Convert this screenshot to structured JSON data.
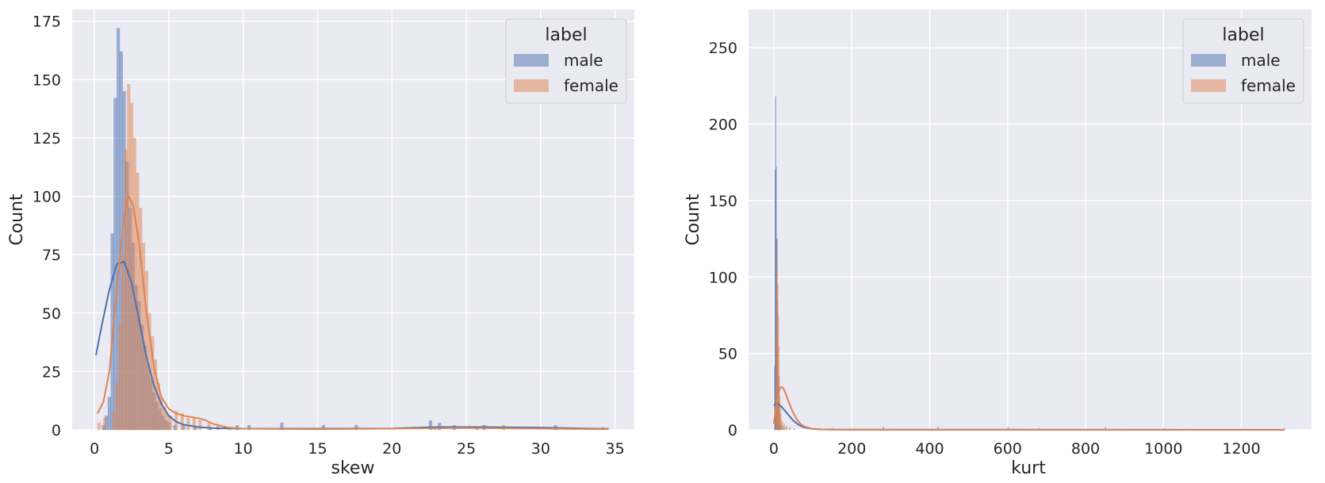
{
  "chart_data": [
    {
      "type": "histogram",
      "xlabel": "skew",
      "ylabel": "Count",
      "xlim": [
        -1.5,
        36.3
      ],
      "ylim": [
        0,
        180
      ],
      "xticks": [
        0,
        5,
        10,
        15,
        20,
        25,
        30,
        35
      ],
      "yticks": [
        0,
        25,
        50,
        75,
        100,
        125,
        150,
        175
      ],
      "grid": true,
      "legend": {
        "title": "label",
        "placement": "top-right",
        "entries": [
          "male",
          "female"
        ]
      },
      "series": [
        {
          "name": "male",
          "color": "#4C72B0",
          "bins": [
            {
              "x": 0.5,
              "w": 0.2,
              "y": 2
            },
            {
              "x": 0.7,
              "w": 0.2,
              "y": 6
            },
            {
              "x": 0.9,
              "w": 0.2,
              "y": 14
            },
            {
              "x": 1.1,
              "w": 0.2,
              "y": 84
            },
            {
              "x": 1.3,
              "w": 0.2,
              "y": 142
            },
            {
              "x": 1.5,
              "w": 0.2,
              "y": 172
            },
            {
              "x": 1.7,
              "w": 0.2,
              "y": 162
            },
            {
              "x": 1.9,
              "w": 0.2,
              "y": 145
            },
            {
              "x": 2.1,
              "w": 0.2,
              "y": 115
            },
            {
              "x": 2.3,
              "w": 0.2,
              "y": 95
            },
            {
              "x": 2.5,
              "w": 0.2,
              "y": 80
            },
            {
              "x": 2.7,
              "w": 0.2,
              "y": 62
            },
            {
              "x": 2.9,
              "w": 0.2,
              "y": 55
            },
            {
              "x": 3.1,
              "w": 0.2,
              "y": 45
            },
            {
              "x": 3.3,
              "w": 0.2,
              "y": 36
            },
            {
              "x": 3.5,
              "w": 0.2,
              "y": 28
            },
            {
              "x": 3.7,
              "w": 0.2,
              "y": 22
            },
            {
              "x": 3.9,
              "w": 0.2,
              "y": 16
            },
            {
              "x": 4.1,
              "w": 0.2,
              "y": 12
            },
            {
              "x": 4.3,
              "w": 0.2,
              "y": 9
            },
            {
              "x": 4.5,
              "w": 0.2,
              "y": 6
            },
            {
              "x": 4.7,
              "w": 0.2,
              "y": 4
            },
            {
              "x": 4.9,
              "w": 0.2,
              "y": 3
            },
            {
              "x": 5.3,
              "w": 0.2,
              "y": 2
            },
            {
              "x": 5.9,
              "w": 0.2,
              "y": 2
            },
            {
              "x": 6.7,
              "w": 0.2,
              "y": 1
            },
            {
              "x": 7.7,
              "w": 0.2,
              "y": 1
            },
            {
              "x": 9.5,
              "w": 0.2,
              "y": 2
            },
            {
              "x": 10.3,
              "w": 0.2,
              "y": 2
            },
            {
              "x": 12.5,
              "w": 0.2,
              "y": 3
            },
            {
              "x": 15.3,
              "w": 0.2,
              "y": 2
            },
            {
              "x": 17.5,
              "w": 0.2,
              "y": 2
            },
            {
              "x": 22.5,
              "w": 0.2,
              "y": 4
            },
            {
              "x": 23.1,
              "w": 0.2,
              "y": 3
            },
            {
              "x": 24.1,
              "w": 0.2,
              "y": 2
            },
            {
              "x": 26.1,
              "w": 0.2,
              "y": 2
            },
            {
              "x": 30.9,
              "w": 0.2,
              "y": 2
            },
            {
              "x": 34.1,
              "w": 0.2,
              "y": 1
            }
          ],
          "kde": {
            "x": [
              0.1,
              0.5,
              1.0,
              1.5,
              2.0,
              2.5,
              3.0,
              3.5,
              4.0,
              4.5,
              5.0,
              5.5,
              6.0,
              7.0,
              8.0,
              10.0,
              15.0,
              20.0,
              23.0,
              26.0,
              30.0,
              34.5
            ],
            "y": [
              32,
              45,
              60,
              71,
              72,
              63,
              47,
              31,
              19,
              11,
              6,
              3.5,
              2.2,
              1.2,
              0.7,
              0.5,
              0.5,
              0.6,
              1.2,
              1.2,
              1.0,
              0.4
            ]
          }
        },
        {
          "name": "female",
          "color": "#DD8452",
          "bins": [
            {
              "x": 0.2,
              "w": 0.2,
              "y": 3
            },
            {
              "x": 0.6,
              "w": 0.2,
              "y": 5
            },
            {
              "x": 1.2,
              "w": 0.2,
              "y": 8
            },
            {
              "x": 1.4,
              "w": 0.2,
              "y": 20
            },
            {
              "x": 1.6,
              "w": 0.2,
              "y": 45
            },
            {
              "x": 1.8,
              "w": 0.2,
              "y": 75
            },
            {
              "x": 2.0,
              "w": 0.2,
              "y": 120
            },
            {
              "x": 2.2,
              "w": 0.2,
              "y": 148
            },
            {
              "x": 2.4,
              "w": 0.2,
              "y": 140
            },
            {
              "x": 2.6,
              "w": 0.2,
              "y": 125
            },
            {
              "x": 2.8,
              "w": 0.2,
              "y": 110
            },
            {
              "x": 3.0,
              "w": 0.2,
              "y": 95
            },
            {
              "x": 3.2,
              "w": 0.2,
              "y": 80
            },
            {
              "x": 3.4,
              "w": 0.2,
              "y": 68
            },
            {
              "x": 3.6,
              "w": 0.2,
              "y": 50
            },
            {
              "x": 3.8,
              "w": 0.2,
              "y": 40
            },
            {
              "x": 4.0,
              "w": 0.2,
              "y": 30
            },
            {
              "x": 4.2,
              "w": 0.2,
              "y": 20
            },
            {
              "x": 4.4,
              "w": 0.2,
              "y": 14
            },
            {
              "x": 4.6,
              "w": 0.2,
              "y": 10
            },
            {
              "x": 4.8,
              "w": 0.2,
              "y": 7
            },
            {
              "x": 5.0,
              "w": 0.2,
              "y": 6
            },
            {
              "x": 5.4,
              "w": 0.2,
              "y": 8
            },
            {
              "x": 5.8,
              "w": 0.2,
              "y": 7
            },
            {
              "x": 6.2,
              "w": 0.2,
              "y": 5
            },
            {
              "x": 6.6,
              "w": 0.2,
              "y": 5
            },
            {
              "x": 7.0,
              "w": 0.2,
              "y": 4
            },
            {
              "x": 7.6,
              "w": 0.2,
              "y": 3
            },
            {
              "x": 8.2,
              "w": 0.2,
              "y": 2
            },
            {
              "x": 9.0,
              "w": 0.2,
              "y": 1
            },
            {
              "x": 22.8,
              "w": 0.2,
              "y": 1
            },
            {
              "x": 25.6,
              "w": 0.2,
              "y": 1
            },
            {
              "x": 27.4,
              "w": 0.2,
              "y": 2
            },
            {
              "x": 34.4,
              "w": 0.2,
              "y": 1
            }
          ],
          "kde": {
            "x": [
              0.2,
              0.6,
              1.0,
              1.5,
              2.0,
              2.3,
              2.6,
              3.0,
              3.5,
              4.0,
              4.5,
              5.0,
              5.5,
              6.0,
              6.5,
              7.0,
              7.5,
              8.0,
              9.0,
              10.0,
              15.0,
              25.0,
              34.5
            ],
            "y": [
              7,
              12,
              25,
              60,
              92,
              100,
              96,
              80,
              50,
              27,
              14,
              9,
              7,
              6,
              5.5,
              5,
              4,
              2.5,
              1,
              0.5,
              0.3,
              0.8,
              0.3
            ]
          }
        }
      ]
    },
    {
      "type": "histogram",
      "xlabel": "kurt",
      "ylabel": "Count",
      "xlim": [
        -65,
        1380
      ],
      "ylim": [
        0,
        275
      ],
      "xticks": [
        0,
        200,
        400,
        600,
        800,
        1000,
        1200
      ],
      "yticks": [
        0,
        50,
        100,
        150,
        200,
        250
      ],
      "grid": true,
      "legend": {
        "title": "label",
        "placement": "top-right",
        "entries": [
          "male",
          "female"
        ]
      },
      "series": [
        {
          "name": "male",
          "color": "#4C72B0",
          "bins": [
            {
              "x": 1,
              "w": 1.2,
              "y": 42
            },
            {
              "x": 2.3,
              "w": 1.2,
              "y": 170
            },
            {
              "x": 3.6,
              "w": 1.2,
              "y": 218
            },
            {
              "x": 4.9,
              "w": 1.2,
              "y": 172
            },
            {
              "x": 6.2,
              "w": 1.2,
              "y": 125
            },
            {
              "x": 7.5,
              "w": 1.2,
              "y": 85
            },
            {
              "x": 8.8,
              "w": 1.2,
              "y": 50
            },
            {
              "x": 10.1,
              "w": 1.2,
              "y": 30
            },
            {
              "x": 11.4,
              "w": 1.2,
              "y": 18
            },
            {
              "x": 12.7,
              "w": 1.2,
              "y": 10
            },
            {
              "x": 14,
              "w": 1.2,
              "y": 6
            },
            {
              "x": 16,
              "w": 1.2,
              "y": 4
            },
            {
              "x": 19,
              "w": 1.2,
              "y": 3
            },
            {
              "x": 24,
              "w": 1.2,
              "y": 2
            },
            {
              "x": 30,
              "w": 1.2,
              "y": 2
            },
            {
              "x": 40,
              "w": 1.2,
              "y": 1
            },
            {
              "x": 150,
              "w": 1.2,
              "y": 1
            },
            {
              "x": 280,
              "w": 1.2,
              "y": 2
            },
            {
              "x": 420,
              "w": 1.2,
              "y": 2
            },
            {
              "x": 600,
              "w": 1.2,
              "y": 2
            },
            {
              "x": 680,
              "w": 1.2,
              "y": 1
            },
            {
              "x": 850,
              "w": 1.2,
              "y": 2
            },
            {
              "x": 1000,
              "w": 1.2,
              "y": 1
            },
            {
              "x": 1310,
              "w": 1.2,
              "y": 1
            }
          ],
          "kde": {
            "x": [
              0,
              5,
              10,
              20,
              30,
              40,
              50,
              60,
              70,
              80,
              100,
              120,
              150,
              200,
              300,
              600,
              1000,
              1310
            ],
            "y": [
              16,
              17,
              17,
              15,
              12,
              9,
              6,
              4,
              2.5,
              1.5,
              0.6,
              0.3,
              0.2,
              0.15,
              0.1,
              0.1,
              0.05,
              0.05
            ]
          }
        },
        {
          "name": "female",
          "color": "#DD8452",
          "bins": [
            {
              "x": 4,
              "w": 1.2,
              "y": 20
            },
            {
              "x": 5.3,
              "w": 1.2,
              "y": 60
            },
            {
              "x": 6.6,
              "w": 1.2,
              "y": 105
            },
            {
              "x": 7.9,
              "w": 1.2,
              "y": 125
            },
            {
              "x": 9.2,
              "w": 1.2,
              "y": 95
            },
            {
              "x": 10.5,
              "w": 1.2,
              "y": 75
            },
            {
              "x": 11.8,
              "w": 1.2,
              "y": 55
            },
            {
              "x": 13.1,
              "w": 1.2,
              "y": 35
            },
            {
              "x": 14.4,
              "w": 1.2,
              "y": 22
            },
            {
              "x": 15.7,
              "w": 1.2,
              "y": 15
            },
            {
              "x": 17,
              "w": 1.2,
              "y": 10
            },
            {
              "x": 19,
              "w": 1.2,
              "y": 7
            },
            {
              "x": 22,
              "w": 1.2,
              "y": 5
            },
            {
              "x": 26,
              "w": 1.2,
              "y": 4
            },
            {
              "x": 32,
              "w": 1.2,
              "y": 3
            },
            {
              "x": 40,
              "w": 1.2,
              "y": 2
            },
            {
              "x": 52,
              "w": 1.2,
              "y": 1
            }
          ],
          "kde": {
            "x": [
              0,
              5,
              10,
              15,
              20,
              25,
              30,
              40,
              50,
              60,
              70,
              80,
              100,
              120,
              150,
              200,
              400,
              800,
              1310
            ],
            "y": [
              4,
              14,
              22,
              27,
              28,
              27,
              24,
              17,
              11,
              6.5,
              3.5,
              2,
              0.6,
              0.3,
              0.15,
              0.1,
              0.05,
              0.05,
              0.02
            ]
          }
        }
      ]
    }
  ]
}
